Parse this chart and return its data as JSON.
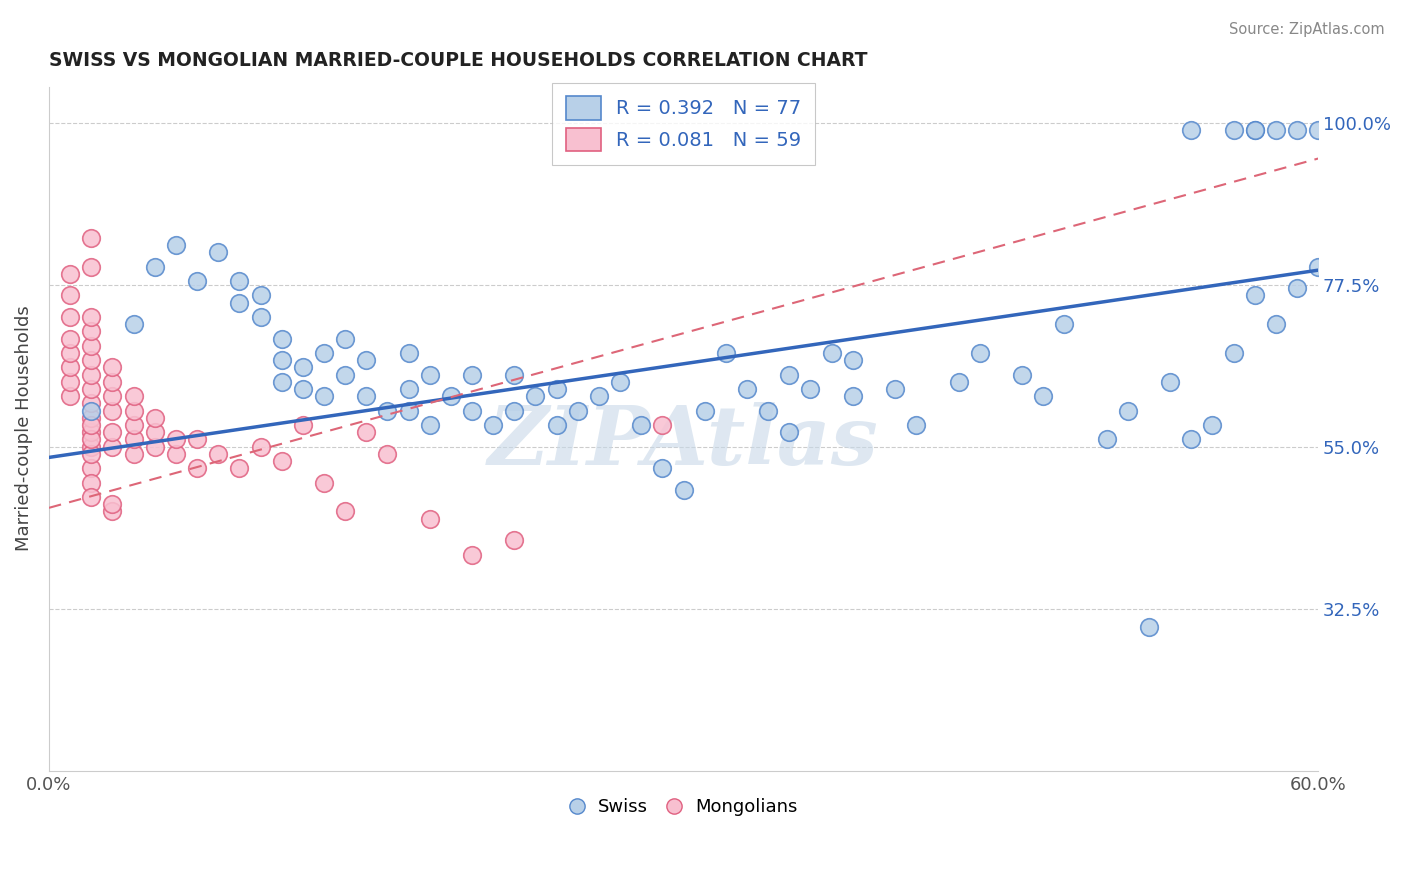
{
  "title": "SWISS VS MONGOLIAN MARRIED-COUPLE HOUSEHOLDS CORRELATION CHART",
  "source_text": "Source: ZipAtlas.com",
  "ylabel": "Married-couple Households",
  "y_ticks": [
    0.325,
    0.55,
    0.775,
    1.0
  ],
  "y_tick_labels": [
    "32.5%",
    "55.0%",
    "77.5%",
    "100.0%"
  ],
  "x_min": 0.0,
  "x_max": 0.6,
  "y_min": 0.1,
  "y_max": 1.05,
  "swiss_color": "#b8d0e8",
  "swiss_edge_color": "#5588cc",
  "mongolian_color": "#f8c0d0",
  "mongolian_edge_color": "#e06080",
  "swiss_R": 0.392,
  "swiss_N": 77,
  "mongolian_R": 0.081,
  "mongolian_N": 59,
  "legend_swiss_label": "R = 0.392   N = 77",
  "legend_mongolian_label": "R = 0.081   N = 59",
  "watermark": "ZIPAtlas",
  "swiss_line_color": "#3366bb",
  "mongolian_line_color": "#dd6677",
  "swiss_line_x": [
    0.0,
    0.6
  ],
  "swiss_line_y": [
    0.535,
    0.795
  ],
  "mongolian_line_x": [
    0.0,
    0.6
  ],
  "mongolian_line_y": [
    0.465,
    0.95
  ],
  "swiss_points_x": [
    0.02,
    0.04,
    0.05,
    0.06,
    0.07,
    0.08,
    0.09,
    0.09,
    0.1,
    0.1,
    0.11,
    0.11,
    0.11,
    0.12,
    0.12,
    0.13,
    0.13,
    0.14,
    0.14,
    0.15,
    0.15,
    0.16,
    0.17,
    0.17,
    0.17,
    0.18,
    0.18,
    0.19,
    0.2,
    0.2,
    0.21,
    0.22,
    0.22,
    0.23,
    0.24,
    0.24,
    0.25,
    0.26,
    0.27,
    0.28,
    0.29,
    0.3,
    0.31,
    0.32,
    0.33,
    0.34,
    0.35,
    0.35,
    0.36,
    0.37,
    0.38,
    0.38,
    0.4,
    0.41,
    0.43,
    0.44,
    0.46,
    0.47,
    0.48,
    0.5,
    0.51,
    0.52,
    0.53,
    0.54,
    0.55,
    0.56,
    0.57,
    0.58,
    0.59,
    0.6,
    0.54,
    0.56,
    0.57,
    0.57,
    0.58,
    0.59,
    0.6
  ],
  "swiss_points_y": [
    0.6,
    0.72,
    0.8,
    0.83,
    0.78,
    0.82,
    0.75,
    0.78,
    0.73,
    0.76,
    0.64,
    0.67,
    0.7,
    0.63,
    0.66,
    0.62,
    0.68,
    0.65,
    0.7,
    0.62,
    0.67,
    0.6,
    0.6,
    0.63,
    0.68,
    0.58,
    0.65,
    0.62,
    0.6,
    0.65,
    0.58,
    0.6,
    0.65,
    0.62,
    0.58,
    0.63,
    0.6,
    0.62,
    0.64,
    0.58,
    0.52,
    0.49,
    0.6,
    0.68,
    0.63,
    0.6,
    0.57,
    0.65,
    0.63,
    0.68,
    0.62,
    0.67,
    0.63,
    0.58,
    0.64,
    0.68,
    0.65,
    0.62,
    0.72,
    0.56,
    0.6,
    0.3,
    0.64,
    0.56,
    0.58,
    0.68,
    0.76,
    0.72,
    0.77,
    0.8,
    0.99,
    0.99,
    0.99,
    0.99,
    0.99,
    0.99,
    0.99
  ],
  "mongolian_points_x": [
    0.01,
    0.01,
    0.01,
    0.01,
    0.01,
    0.01,
    0.01,
    0.01,
    0.02,
    0.02,
    0.02,
    0.02,
    0.02,
    0.02,
    0.02,
    0.02,
    0.02,
    0.02,
    0.02,
    0.02,
    0.02,
    0.02,
    0.02,
    0.02,
    0.03,
    0.03,
    0.03,
    0.03,
    0.03,
    0.03,
    0.04,
    0.04,
    0.04,
    0.04,
    0.04,
    0.05,
    0.05,
    0.05,
    0.06,
    0.06,
    0.07,
    0.07,
    0.08,
    0.09,
    0.1,
    0.11,
    0.12,
    0.13,
    0.14,
    0.15,
    0.16,
    0.18,
    0.2,
    0.22,
    0.29,
    0.02,
    0.02,
    0.03,
    0.03
  ],
  "mongolian_points_y": [
    0.62,
    0.64,
    0.66,
    0.68,
    0.7,
    0.73,
    0.76,
    0.79,
    0.55,
    0.57,
    0.59,
    0.61,
    0.63,
    0.65,
    0.67,
    0.69,
    0.71,
    0.73,
    0.52,
    0.54,
    0.56,
    0.58,
    0.5,
    0.48,
    0.55,
    0.57,
    0.6,
    0.62,
    0.64,
    0.66,
    0.54,
    0.56,
    0.58,
    0.6,
    0.62,
    0.55,
    0.57,
    0.59,
    0.54,
    0.56,
    0.52,
    0.56,
    0.54,
    0.52,
    0.55,
    0.53,
    0.58,
    0.5,
    0.46,
    0.57,
    0.54,
    0.45,
    0.4,
    0.42,
    0.58,
    0.8,
    0.84,
    0.46,
    0.47
  ]
}
